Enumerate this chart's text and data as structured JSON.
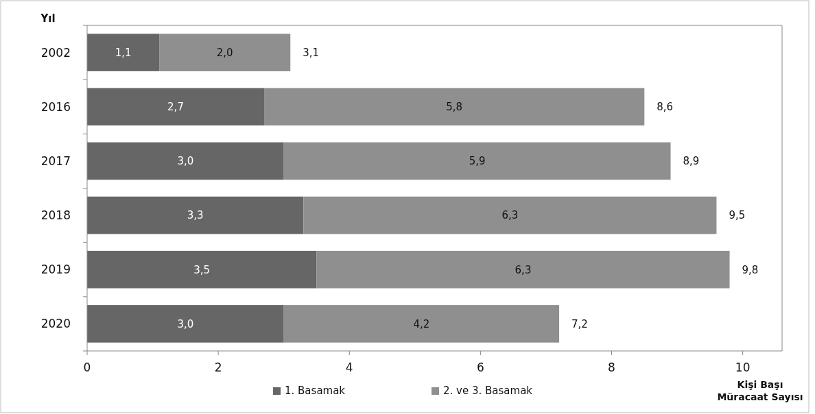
{
  "chart_data": {
    "type": "bar",
    "orientation": "horizontal",
    "stacked": true,
    "ylabel": "Yıl",
    "xlabel": "Kişi Başı Müracaat Sayısı",
    "categories": [
      "2002",
      "2016",
      "2017",
      "2018",
      "2019",
      "2020"
    ],
    "series": [
      {
        "name": "1. Basamak",
        "color": "#666666",
        "values": [
          1.1,
          2.7,
          3.0,
          3.3,
          3.5,
          3.0
        ],
        "value_labels": [
          "1,1",
          "2,7",
          "3,0",
          "3,3",
          "3,5",
          "3,0"
        ]
      },
      {
        "name": "2. ve 3. Basamak",
        "color": "#8f8f8f",
        "values": [
          2.0,
          5.8,
          5.9,
          6.3,
          6.3,
          4.2
        ],
        "value_labels": [
          "2,0",
          "5,8",
          "5,9",
          "6,3",
          "6,3",
          "4,2"
        ]
      }
    ],
    "totals": [
      "3,1",
      "8,6",
      "8,9",
      "9,5",
      "9,8",
      "7,2"
    ],
    "xlim": [
      0,
      10.6
    ],
    "xticks": [
      0,
      2,
      4,
      6,
      8,
      10
    ],
    "grid": false,
    "legend": "bottom"
  }
}
